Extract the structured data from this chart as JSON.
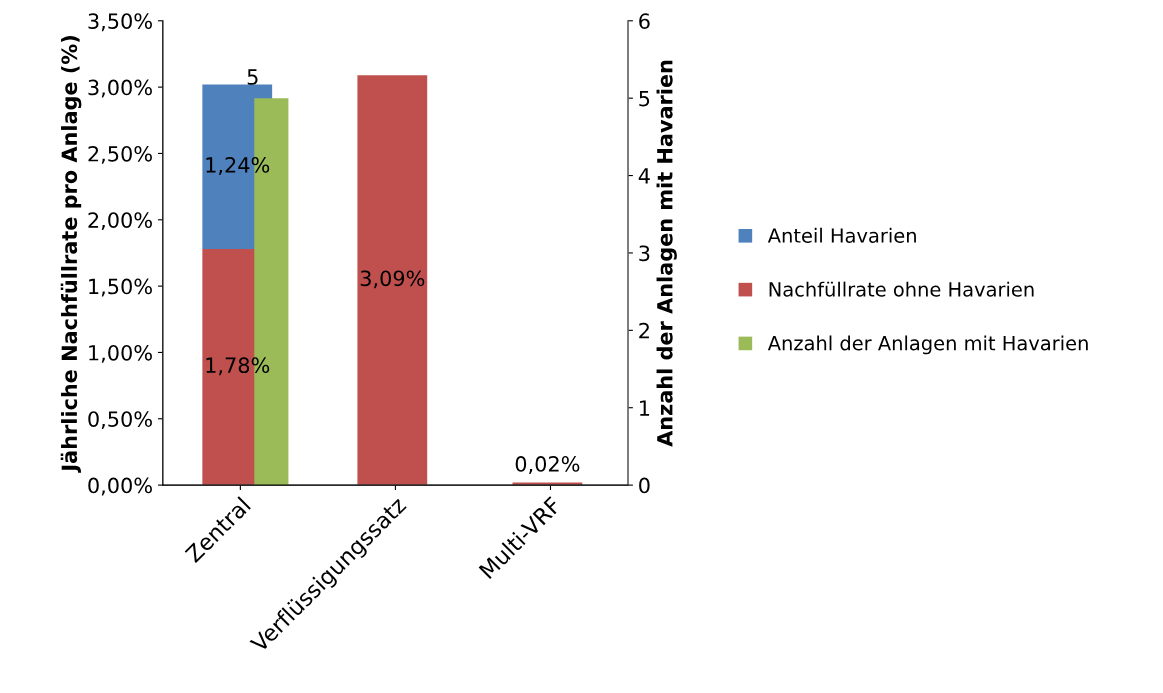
{
  "chart_data": {
    "type": "bar",
    "stacked": true,
    "ylabel": "Jährliche Nachfüllrate pro Anlage (%)",
    "y2label": "Anzahl der Anlagen mit Havarien",
    "categories": [
      "Zentral",
      "Verflüssigungssatz",
      "Multi-VRF"
    ],
    "series": [
      {
        "name": "Anteil Havarien",
        "color": "#4f81bd",
        "values": [
          1.24,
          null,
          null
        ],
        "value_labels": [
          "1,24%",
          null,
          null
        ]
      },
      {
        "name": "Nachfüllrate ohne Havarien",
        "color": "#c0504d",
        "values": [
          1.78,
          3.09,
          0.02
        ],
        "value_labels": [
          "1,78%",
          "3,09%",
          "0,02%"
        ]
      },
      {
        "name": "Anzahl der Anlagen mit Havarien",
        "color": "#9bbb59",
        "axis": "y2",
        "values": [
          5,
          null,
          null
        ],
        "value_labels": [
          "5",
          null,
          null
        ]
      }
    ],
    "ylim": [
      0,
      3.5
    ],
    "yticks": [
      {
        "value": 0,
        "label": "0,00%"
      },
      {
        "value": 0.5,
        "label": "0,50%"
      },
      {
        "value": 1,
        "label": "1,00%"
      },
      {
        "value": 1.5,
        "label": "1,50%"
      },
      {
        "value": 2,
        "label": "2,00%"
      },
      {
        "value": 2.5,
        "label": "2,50%"
      },
      {
        "value": 3,
        "label": "3,00%"
      },
      {
        "value": 3.5,
        "label": "3,50%"
      }
    ],
    "y2lim": [
      0,
      6
    ],
    "y2ticks": [
      0,
      1,
      2,
      3,
      4,
      5,
      6
    ],
    "grid": false,
    "legend": "right"
  }
}
